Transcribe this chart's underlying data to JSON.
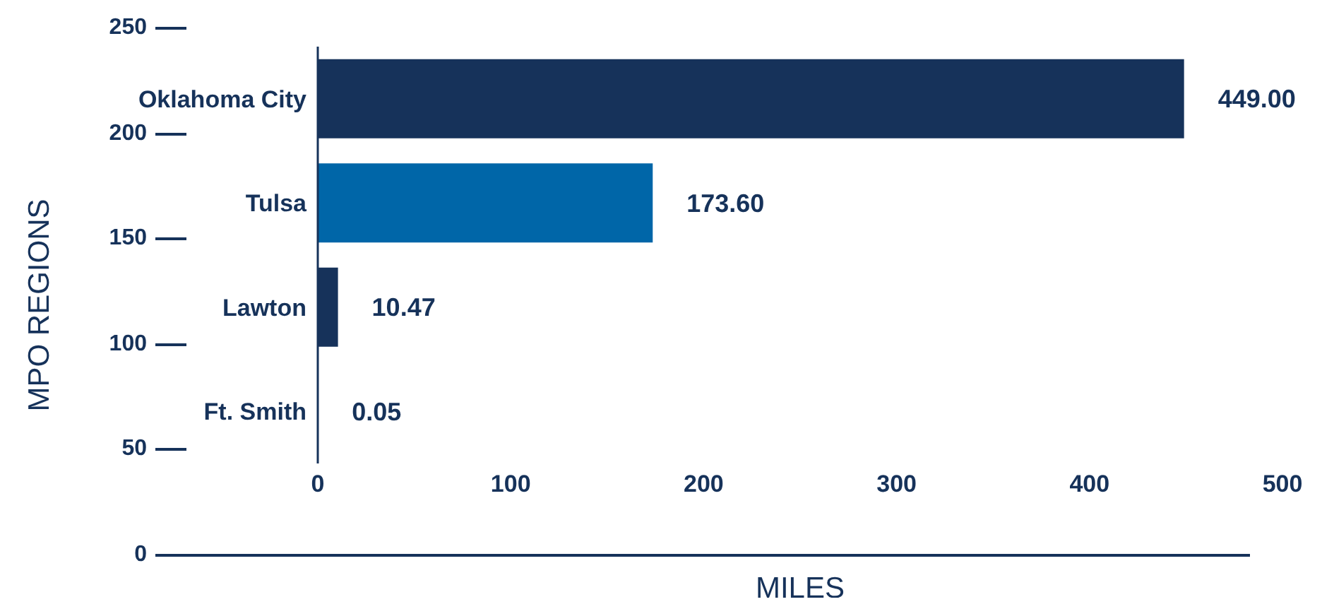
{
  "chart_data": {
    "type": "bar",
    "orientation": "horizontal",
    "categories": [
      "Oklahoma City",
      "Tulsa",
      "Lawton",
      "Ft. Smith"
    ],
    "values": [
      449.0,
      173.6,
      10.47,
      0.05
    ],
    "colors": [
      "#16325a",
      "#0066a8",
      "#16325a",
      "#0066a8"
    ],
    "value_labels": [
      "449.00",
      "173.60",
      "10.47",
      "0.05"
    ],
    "xlim": [
      0,
      500
    ],
    "xticks": [
      0,
      100,
      200,
      300,
      400,
      500
    ],
    "annotations": [
      "250",
      "200",
      "150",
      "100",
      "50",
      "0"
    ],
    "xlabel": "MILES",
    "ylabel": "MPO REGIONS",
    "grid": false,
    "legend": false
  }
}
